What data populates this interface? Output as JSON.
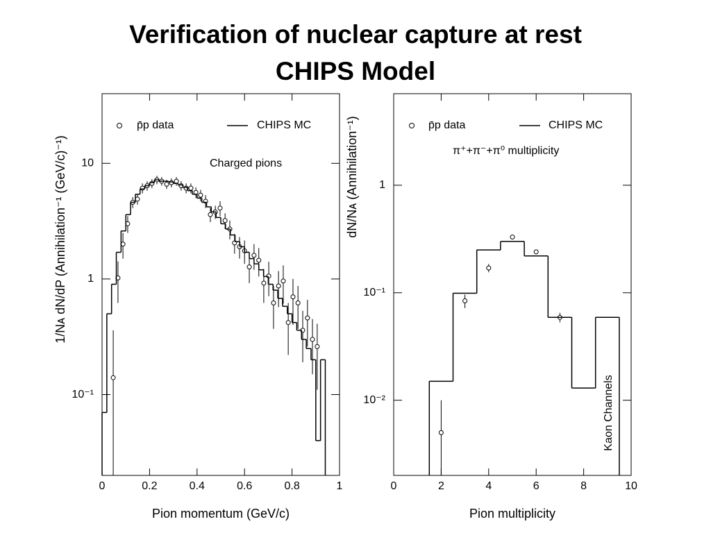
{
  "title": "Verification of nuclear capture at rest",
  "subtitle": "CHIPS Model",
  "chart_data": [
    {
      "type": "scatter",
      "ylog": true,
      "color": "#000000",
      "x_label": "Pion momentum (GeV/c)",
      "y_label": "1/Nᴀ dN/dP (Annihilation⁻¹ (GeV/c)⁻¹)",
      "annotations": [
        "Charged pions"
      ],
      "xlim": [
        0,
        1
      ],
      "xticks": [
        0,
        0.2,
        0.4,
        0.6,
        0.8,
        1
      ],
      "ylim": [
        0.02,
        40
      ],
      "yticks": [
        {
          "value": 0.1,
          "label": "10⁻¹"
        },
        1,
        10
      ],
      "series": [
        {
          "name": "p̄p data",
          "x": [
            0.047,
            0.067,
            0.088,
            0.108,
            0.129,
            0.149,
            0.17,
            0.19,
            0.21,
            0.231,
            0.251,
            0.272,
            0.292,
            0.313,
            0.333,
            0.354,
            0.374,
            0.395,
            0.415,
            0.436,
            0.456,
            0.477,
            0.497,
            0.518,
            0.538,
            0.558,
            0.579,
            0.6,
            0.62,
            0.64,
            0.66,
            0.681,
            0.702,
            0.722,
            0.743,
            0.763,
            0.784,
            0.804,
            0.825,
            0.845,
            0.865,
            0.886,
            0.906
          ],
          "values": [
            0.14,
            1.02,
            2.0,
            3.0,
            4.6,
            4.9,
            6.1,
            6.4,
            6.7,
            7.2,
            7.0,
            6.6,
            6.8,
            7.0,
            6.4,
            6.1,
            6.1,
            5.6,
            5.3,
            4.7,
            3.6,
            3.8,
            4.1,
            3.2,
            2.7,
            2.05,
            1.9,
            1.75,
            1.27,
            1.6,
            1.45,
            0.92,
            1.06,
            0.62,
            0.87,
            0.96,
            0.42,
            0.7,
            0.62,
            0.36,
            0.46,
            0.3,
            0.26
          ],
          "errors": [
            0.22,
            0.4,
            0.5,
            0.5,
            0.5,
            0.5,
            0.6,
            0.6,
            0.6,
            0.6,
            0.6,
            0.6,
            0.6,
            0.6,
            0.6,
            0.6,
            0.6,
            0.6,
            0.6,
            0.6,
            0.5,
            0.5,
            0.6,
            0.5,
            0.5,
            0.4,
            0.4,
            0.4,
            0.35,
            0.4,
            0.4,
            0.3,
            0.35,
            0.25,
            0.3,
            0.35,
            0.2,
            0.3,
            0.25,
            0.17,
            0.2,
            0.15,
            0.15
          ]
        },
        {
          "name": "CHIPS MC",
          "bins": [
            0,
            0.02,
            0.04,
            0.06,
            0.08,
            0.1,
            0.12,
            0.14,
            0.16,
            0.18,
            0.2,
            0.22,
            0.24,
            0.26,
            0.28,
            0.3,
            0.32,
            0.34,
            0.36,
            0.38,
            0.4,
            0.42,
            0.44,
            0.46,
            0.48,
            0.5,
            0.52,
            0.54,
            0.56,
            0.58,
            0.6,
            0.62,
            0.64,
            0.66,
            0.68,
            0.7,
            0.72,
            0.74,
            0.76,
            0.78,
            0.8,
            0.82,
            0.84,
            0.86,
            0.88,
            0.9,
            0.92,
            0.94
          ],
          "values": [
            0.07,
            0.5,
            0.9,
            1.7,
            2.6,
            3.6,
            4.6,
            5.4,
            6.0,
            6.4,
            6.8,
            7.2,
            7.0,
            7.0,
            6.9,
            6.7,
            6.5,
            6.2,
            5.8,
            5.4,
            5.0,
            4.6,
            4.2,
            3.8,
            3.4,
            3.0,
            2.7,
            2.4,
            2.1,
            1.9,
            1.7,
            1.5,
            1.35,
            1.2,
            1.05,
            0.9,
            0.8,
            0.68,
            0.58,
            0.5,
            0.42,
            0.36,
            0.3,
            0.25,
            0.2,
            0.04,
            0.2
          ]
        }
      ]
    },
    {
      "type": "scatter",
      "ylog": true,
      "color": "#000000",
      "x_label": "Pion multiplicity",
      "y_label": "dN/Nᴀ (Annihilation⁻¹)",
      "annotations": [
        "π⁺+π⁻+π⁰ multiplicity",
        "Kaon Channels"
      ],
      "xlim": [
        0,
        10
      ],
      "xticks": [
        0,
        2,
        4,
        6,
        8,
        10
      ],
      "ylim": [
        0.002,
        7.1
      ],
      "yticks": [
        {
          "value": 0.01,
          "label": "10⁻²"
        },
        {
          "value": 0.1,
          "label": "10⁻¹"
        },
        1
      ],
      "series": [
        {
          "name": "p̄p data",
          "x": [
            2,
            3,
            4,
            5,
            6,
            7
          ],
          "values": [
            0.005,
            0.084,
            0.17,
            0.33,
            0.24,
            0.059
          ],
          "errors": [
            0.005,
            0.012,
            0.015,
            0.01,
            0.01,
            0.006
          ]
        },
        {
          "name": "CHIPS MC",
          "bins": [
            1.5,
            2.5,
            3.5,
            4.5,
            5.5,
            6.5,
            7.5,
            8.5,
            9.5
          ],
          "values": [
            0.015,
            0.099,
            0.25,
            0.3,
            0.22,
            0.059,
            0.013,
            0.059
          ]
        }
      ]
    }
  ]
}
